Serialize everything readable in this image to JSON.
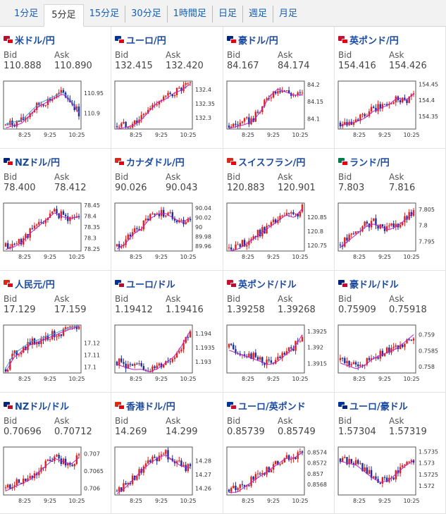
{
  "tabs": [
    {
      "label": "1分足",
      "active": false
    },
    {
      "label": "5分足",
      "active": true
    },
    {
      "label": "15分足",
      "active": false
    },
    {
      "label": "30分足",
      "active": false
    },
    {
      "label": "1時間足",
      "active": false
    },
    {
      "label": "日足",
      "active": false
    },
    {
      "label": "週足",
      "active": false
    },
    {
      "label": "月足",
      "active": false
    }
  ],
  "labels": {
    "bid": "Bid",
    "ask": "Ask"
  },
  "colors": {
    "up": "#e0201c",
    "down": "#1a2c9c",
    "ma": "#c020c8",
    "line2": "#3a9fd8",
    "link": "#1a4aa0"
  },
  "time_ticks": [
    "8:25",
    "9:25",
    "10:25"
  ],
  "pairs": [
    {
      "name": "米ドル/円",
      "bid": "110.888",
      "ask": "110.890",
      "flags": [
        "#bf0a30",
        "#e60012"
      ],
      "chart_data": {
        "type": "candlestick",
        "y_ticks": [
          "110.95",
          "110.9"
        ],
        "ylim": [
          110.86,
          110.98
        ],
        "trend": [
          110.87,
          110.875,
          110.88,
          110.9,
          110.92,
          110.93,
          110.94,
          110.95,
          110.93,
          110.9
        ],
        "extra_line": true
      }
    },
    {
      "name": "ユーロ/円",
      "bid": "132.415",
      "ask": "132.420",
      "flags": [
        "#003399",
        "#e60012"
      ],
      "chart_data": {
        "type": "candlestick",
        "y_ticks": [
          "132.4",
          "132.35",
          "132.3"
        ],
        "ylim": [
          132.26,
          132.43
        ],
        "trend": [
          132.27,
          132.275,
          132.28,
          132.3,
          132.33,
          132.36,
          132.37,
          132.39,
          132.4,
          132.42
        ]
      }
    },
    {
      "name": "豪ドル/円",
      "bid": "84.167",
      "ask": "84.174",
      "flags": [
        "#00247d",
        "#e60012"
      ],
      "chart_data": {
        "type": "candlestick",
        "y_ticks": [
          "84.2",
          "84.15",
          "84.1"
        ],
        "ylim": [
          84.07,
          84.21
        ],
        "trend": [
          84.08,
          84.085,
          84.09,
          84.1,
          84.13,
          84.17,
          84.19,
          84.18,
          84.17,
          84.17
        ]
      }
    },
    {
      "name": "英ポンド/円",
      "bid": "154.416",
      "ask": "154.426",
      "flags": [
        "#c8102e",
        "#e60012"
      ],
      "chart_data": {
        "type": "candlestick",
        "y_ticks": [
          "154.45",
          "154.4",
          "154.35"
        ],
        "ylim": [
          154.31,
          154.46
        ],
        "trend": [
          154.33,
          154.335,
          154.34,
          154.35,
          154.37,
          154.38,
          154.39,
          154.41,
          154.4,
          154.42
        ]
      }
    },
    {
      "name": "NZドル/円",
      "bid": "78.400",
      "ask": "78.412",
      "flags": [
        "#00247d",
        "#e60012"
      ],
      "chart_data": {
        "type": "candlestick",
        "y_ticks": [
          "78.45",
          "78.4",
          "78.35",
          "78.3",
          "78.25"
        ],
        "ylim": [
          78.24,
          78.46
        ],
        "trend": [
          78.26,
          78.27,
          78.29,
          78.33,
          78.36,
          78.39,
          78.42,
          78.4,
          78.39,
          78.4
        ]
      }
    },
    {
      "name": "カナダドル/円",
      "bid": "90.026",
      "ask": "90.043",
      "flags": [
        "#d52b1e",
        "#e60012"
      ],
      "chart_data": {
        "type": "candlestick",
        "y_ticks": [
          "90.04",
          "90.02",
          "90",
          "89.98",
          "89.96"
        ],
        "ylim": [
          89.95,
          90.05
        ],
        "trend": [
          89.96,
          89.97,
          89.99,
          90.0,
          90.02,
          90.03,
          90.03,
          90.02,
          90.01,
          90.02
        ]
      }
    },
    {
      "name": "スイスフラン/円",
      "bid": "120.883",
      "ask": "120.901",
      "flags": [
        "#d52b1e",
        "#e60012"
      ],
      "chart_data": {
        "type": "candlestick",
        "y_ticks": [
          "120.85",
          "120.8",
          "120.75"
        ],
        "ylim": [
          120.73,
          120.9
        ],
        "trend": [
          120.74,
          120.745,
          120.76,
          120.78,
          120.8,
          120.82,
          120.84,
          120.86,
          120.85,
          120.88
        ]
      }
    },
    {
      "name": "ランド/円",
      "bid": "7.803",
      "ask": "7.816",
      "flags": [
        "#007a4d",
        "#e60012"
      ],
      "chart_data": {
        "type": "candlestick",
        "y_ticks": [
          "7.805",
          "7.8",
          "7.795"
        ],
        "ylim": [
          7.792,
          7.807
        ],
        "trend": [
          7.794,
          7.796,
          7.798,
          7.8,
          7.801,
          7.8,
          7.799,
          7.8,
          7.802,
          7.804
        ]
      }
    },
    {
      "name": "人民元/円",
      "bid": "17.129",
      "ask": "17.159",
      "flags": [
        "#de2910",
        "#e60012"
      ],
      "chart_data": {
        "type": "candlestick",
        "y_ticks": [
          "17.12",
          "17.11",
          "17.1"
        ],
        "ylim": [
          17.095,
          17.135
        ],
        "trend": [
          17.098,
          17.11,
          17.115,
          17.12,
          17.122,
          17.125,
          17.127,
          17.13,
          17.132,
          17.134
        ],
        "extra_line": true
      }
    },
    {
      "name": "ユーロ/ドル",
      "bid": "1.19412",
      "ask": "1.19416",
      "flags": [
        "#003399",
        "#bf0a30"
      ],
      "chart_data": {
        "type": "candlestick",
        "y_ticks": [
          "1.194",
          "1.1935",
          "1.193"
        ],
        "ylim": [
          1.1926,
          1.1943
        ],
        "trend": [
          1.193,
          1.1929,
          1.1928,
          1.1928,
          1.1927,
          1.1928,
          1.193,
          1.1932,
          1.1936,
          1.1941
        ]
      }
    },
    {
      "name": "英ポンド/ドル",
      "bid": "1.39258",
      "ask": "1.39268",
      "flags": [
        "#c8102e",
        "#bf0a30"
      ],
      "chart_data": {
        "type": "candlestick",
        "y_ticks": [
          "1.3925",
          "1.392",
          "1.3915"
        ],
        "ylim": [
          1.3912,
          1.3927
        ],
        "trend": [
          1.392,
          1.3919,
          1.3918,
          1.3917,
          1.3916,
          1.3915,
          1.3916,
          1.3918,
          1.392,
          1.3924
        ]
      }
    },
    {
      "name": "豪ドル/ドル",
      "bid": "0.75909",
      "ask": "0.75918",
      "flags": [
        "#00247d",
        "#bf0a30"
      ],
      "chart_data": {
        "type": "candlestick",
        "y_ticks": [
          "0.759",
          "0.7585",
          "0.758"
        ],
        "ylim": [
          0.7578,
          0.7593
        ],
        "trend": [
          0.7582,
          0.7581,
          0.758,
          0.7581,
          0.7583,
          0.7584,
          0.7585,
          0.7586,
          0.7588,
          0.759
        ]
      }
    },
    {
      "name": "NZドル/ドル",
      "bid": "0.70696",
      "ask": "0.70712",
      "flags": [
        "#00247d",
        "#bf0a30"
      ],
      "chart_data": {
        "type": "candlestick",
        "y_ticks": [
          "0.707",
          "0.7065",
          "0.706"
        ],
        "ylim": [
          0.7058,
          0.7072
        ],
        "trend": [
          0.706,
          0.7061,
          0.7062,
          0.7063,
          0.7065,
          0.7067,
          0.7069,
          0.7068,
          0.7067,
          0.7069
        ]
      }
    },
    {
      "name": "香港ドル/円",
      "bid": "14.269",
      "ask": "14.299",
      "flags": [
        "#de2910",
        "#e60012"
      ],
      "chart_data": {
        "type": "candlestick",
        "y_ticks": [
          "14.28",
          "14.27",
          "14.26"
        ],
        "ylim": [
          14.255,
          14.29
        ],
        "trend": [
          14.258,
          14.262,
          14.268,
          14.274,
          14.279,
          14.283,
          14.285,
          14.28,
          14.276,
          14.275
        ]
      }
    },
    {
      "name": "ユーロ/英ポンド",
      "bid": "0.85739",
      "ask": "0.85749",
      "flags": [
        "#003399",
        "#c8102e"
      ],
      "chart_data": {
        "type": "candlestick",
        "y_ticks": [
          "0.8574",
          "0.8572",
          "0.857",
          "0.8568"
        ],
        "ylim": [
          0.8566,
          0.8575
        ],
        "trend": [
          0.8567,
          0.8567,
          0.8568,
          0.8569,
          0.857,
          0.8571,
          0.8572,
          0.8573,
          0.8573,
          0.8574
        ]
      }
    },
    {
      "name": "ユーロ/豪ドル",
      "bid": "1.57304",
      "ask": "1.57319",
      "flags": [
        "#003399",
        "#00247d"
      ],
      "chart_data": {
        "type": "candlestick",
        "y_ticks": [
          "1.5735",
          "1.573",
          "1.5725",
          "1.572"
        ],
        "ylim": [
          1.5716,
          1.5737
        ],
        "trend": [
          1.5732,
          1.5731,
          1.573,
          1.5727,
          1.5724,
          1.5722,
          1.5723,
          1.5726,
          1.5729,
          1.5731
        ]
      }
    }
  ]
}
